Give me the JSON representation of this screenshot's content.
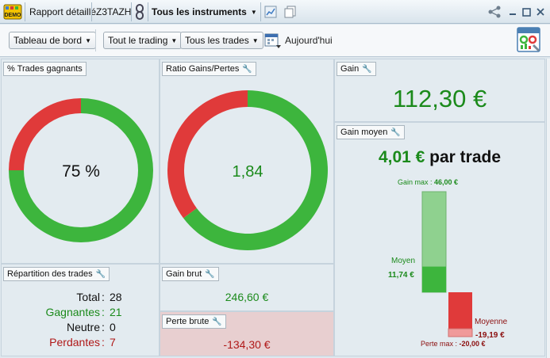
{
  "titlebar": {
    "demo_badge": "DEMO",
    "report_label": "Rapport détaillé",
    "account": "Z3TAZH",
    "instruments_label": "Tous les instruments",
    "icons": [
      "demo-badge-icon",
      "chain-link-icon",
      "chart-icon",
      "copy-icon",
      "share-icon",
      "minimize-icon",
      "maximize-icon",
      "close-icon"
    ]
  },
  "toolbar": {
    "dashboard_label": "Tableau de bord",
    "trading_label": "Tout le trading",
    "trades_label": "Tous les trades",
    "date_label": "Aujourd'hui",
    "icons": [
      "calendar-icon",
      "report-settings-icon"
    ]
  },
  "panels": {
    "win_pct": {
      "title": "% Trades gagnants",
      "value_text": "75 %",
      "value": 75
    },
    "ratio": {
      "title": "Ratio Gains/Pertes",
      "value_text": "1,84",
      "value": 1.84,
      "gain_share": 0.648
    },
    "gain": {
      "title": "Gain",
      "value_text": "112,30 €"
    },
    "gain_avg": {
      "title": "Gain moyen",
      "per_trade_value": "4,01 €",
      "per_trade_suffix": "par trade",
      "gain_max_label": "Gain max :",
      "gain_max_value": "46,00 €",
      "avg_gain_label": "Moyen",
      "avg_gain_value": "11,74 €",
      "avg_loss_label": "Moyenne",
      "avg_loss_value": "-19,19 €",
      "loss_max_label": "Perte max :",
      "loss_max_value": "-20,00 €",
      "gain_max": 46.0,
      "avg_gain": 11.74,
      "avg_loss": 19.19,
      "loss_max": 20.0
    },
    "breakdown": {
      "title": "Répartition des trades",
      "total_label": "Total",
      "total_value": "28",
      "winners_label": "Gagnantes",
      "winners_value": "21",
      "neutral_label": "Neutre",
      "neutral_value": "0",
      "losers_label": "Perdantes",
      "losers_value": "7"
    },
    "gross_gain": {
      "title": "Gain brut",
      "value_text": "246,60 €"
    },
    "gross_loss": {
      "title": "Perte brute",
      "value_text": "-134,30 €"
    }
  },
  "colors": {
    "win": "#3db53d",
    "loss": "#e03a3a",
    "win_light": "#8fd18f",
    "loss_light": "#f09a9a"
  }
}
